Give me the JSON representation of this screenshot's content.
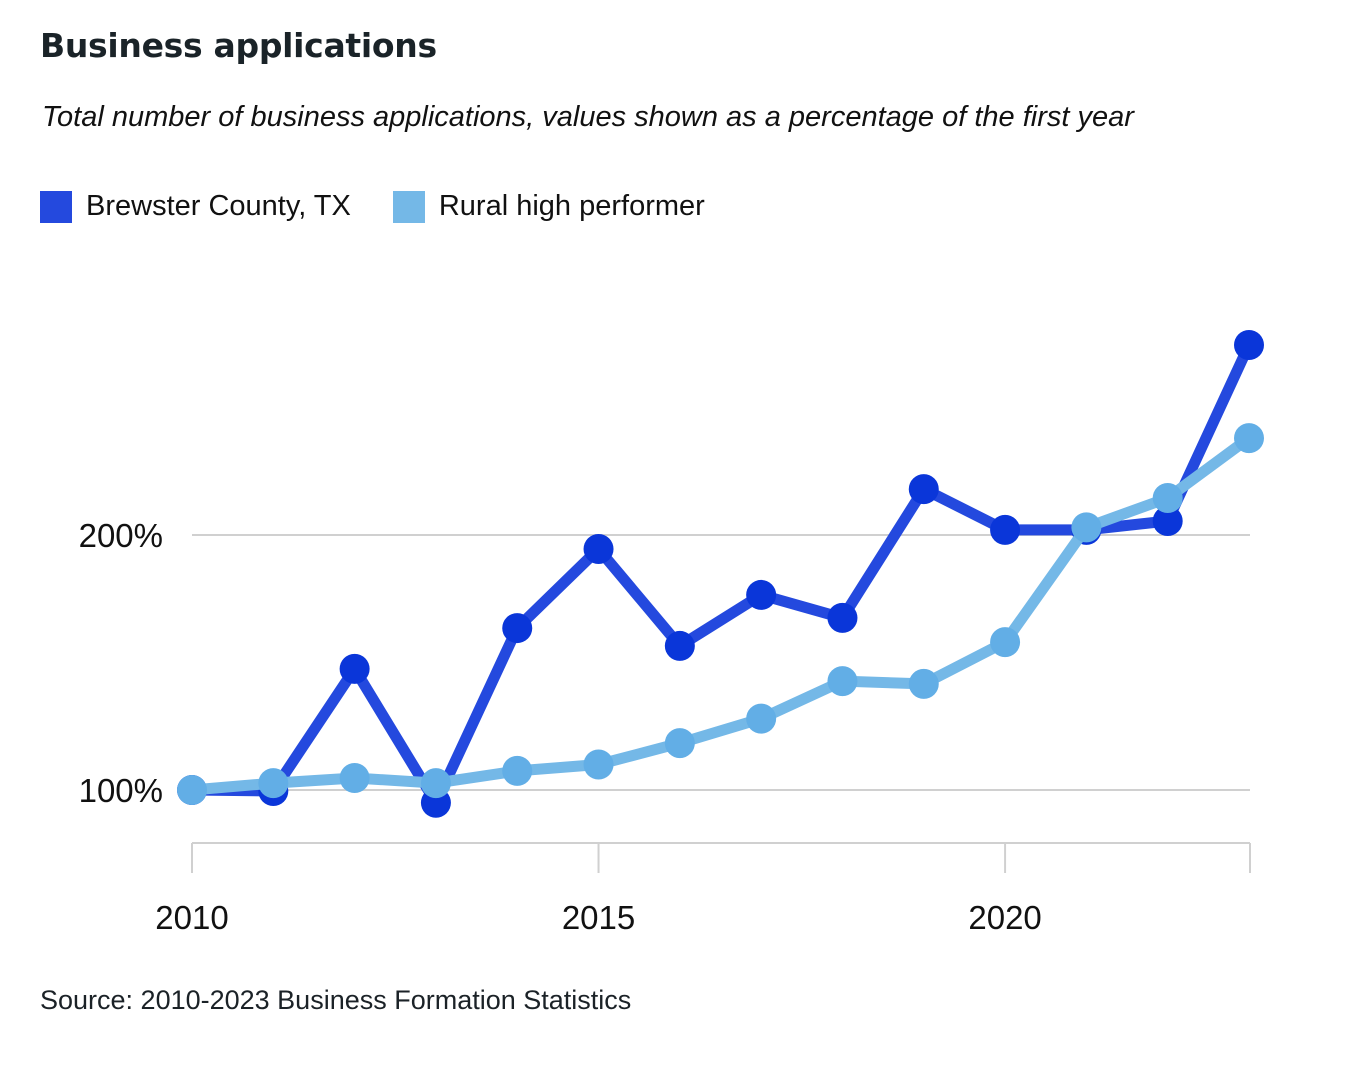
{
  "chart_data": {
    "type": "line",
    "title": "Business applications",
    "subtitle": "Total number of business applications, values shown as a percentage of the first year",
    "xlabel": "",
    "ylabel": "",
    "x": [
      2010,
      2011,
      2012,
      2013,
      2014,
      2015,
      2016,
      2017,
      2018,
      2019,
      2020,
      2021,
      2022,
      2023
    ],
    "xlim": [
      2010,
      2023
    ],
    "ylim": [
      79,
      300
    ],
    "x_ticks": [
      2010,
      2015,
      2020
    ],
    "x_tick_labels": [
      "2010",
      "2015",
      "2020"
    ],
    "y_ticks": [
      100,
      200
    ],
    "y_tick_labels": [
      "100%",
      "200%"
    ],
    "grid": true,
    "legend_position": "top-left",
    "series": [
      {
        "name": "Brewster County, TX",
        "color": "#2449de",
        "marker_color": "#0a36d9",
        "values": [
          100,
          99.6,
          147.5,
          95,
          163.5,
          194.5,
          156.5,
          176.5,
          167.5,
          218,
          202,
          202,
          205.5,
          274.5
        ]
      },
      {
        "name": "Rural high performer",
        "color": "#74b8e7",
        "marker_color": "#62aee6",
        "values": [
          100,
          102.7,
          104.7,
          102.7,
          107.5,
          110,
          118.4,
          128,
          142.7,
          141.6,
          158,
          203,
          214.5,
          238
        ]
      }
    ],
    "source": "Source: 2010-2023 Business Formation Statistics"
  }
}
